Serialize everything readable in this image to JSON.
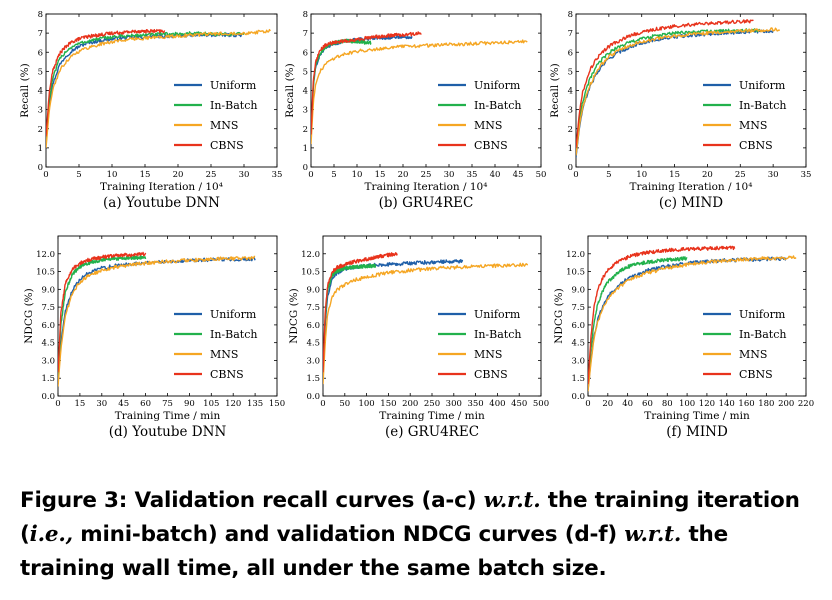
{
  "colors": {
    "Uniform": "#1f5fa8",
    "In-Batch": "#22b14c",
    "MNS": "#f5a623",
    "CBNS": "#e8331c"
  },
  "caption": {
    "label": "Figure 3:",
    "seg1": " Validation recall curves (a-c) ",
    "wrt1": "w.r.t.",
    "seg2": " the training iteration (",
    "ie": "i.e.,",
    "seg3": " mini-batch) and validation NDCG curves (d-f) ",
    "wrt2": "w.r.t.",
    "seg4": " the training wall time, all under the same batch size."
  },
  "chart_data": [
    {
      "id": "a",
      "type": "line",
      "subcaption": "(a) Youtube DNN",
      "xlabel": "Training Iteration / 10⁴",
      "ylabel": "Recall (%)",
      "xlim": [
        0,
        35
      ],
      "ylim": [
        0,
        8
      ],
      "xticks": [
        0,
        5,
        10,
        15,
        20,
        25,
        30,
        35
      ],
      "yticks": [
        0,
        1,
        2,
        3,
        4,
        5,
        6,
        7,
        8
      ],
      "legend": [
        "Uniform",
        "In-Batch",
        "MNS",
        "CBNS"
      ],
      "legend_position": "bottom-right",
      "series": [
        {
          "name": "Uniform",
          "x": [
            0,
            0.5,
            1,
            2,
            3,
            4,
            5,
            6,
            8,
            10,
            12,
            15,
            18,
            20,
            22,
            25,
            28,
            30
          ],
          "y": [
            1.2,
            3.2,
            4.3,
            5.3,
            5.8,
            6.1,
            6.3,
            6.45,
            6.6,
            6.7,
            6.75,
            6.8,
            6.85,
            6.85,
            6.9,
            6.9,
            6.9,
            6.9
          ]
        },
        {
          "name": "In-Batch",
          "x": [
            0,
            0.5,
            1,
            2,
            3,
            4,
            5,
            6,
            8,
            10,
            12,
            15,
            18,
            20,
            22,
            25,
            28,
            30
          ],
          "y": [
            1.4,
            3.5,
            4.6,
            5.6,
            6.05,
            6.3,
            6.45,
            6.55,
            6.7,
            6.8,
            6.85,
            6.9,
            6.95,
            6.95,
            7.0,
            6.95,
            6.95,
            6.95
          ]
        },
        {
          "name": "MNS",
          "x": [
            0,
            0.5,
            1,
            2,
            3,
            4,
            5,
            6,
            8,
            10,
            12,
            15,
            18,
            20,
            22,
            25,
            28,
            30,
            32,
            34
          ],
          "y": [
            1.0,
            3.0,
            4.0,
            5.0,
            5.5,
            5.85,
            6.05,
            6.2,
            6.4,
            6.55,
            6.65,
            6.75,
            6.8,
            6.85,
            6.9,
            6.95,
            7.0,
            7.0,
            7.05,
            7.1
          ]
        },
        {
          "name": "CBNS",
          "x": [
            0,
            0.5,
            1,
            2,
            3,
            4,
            5,
            6,
            8,
            10,
            12,
            14,
            16,
            18
          ],
          "y": [
            1.6,
            3.9,
            5.0,
            5.9,
            6.3,
            6.55,
            6.7,
            6.8,
            6.9,
            7.0,
            7.05,
            7.1,
            7.1,
            7.1
          ]
        }
      ]
    },
    {
      "id": "b",
      "type": "line",
      "subcaption": "(b) GRU4REC",
      "xlabel": "Training Iteration / 10⁴",
      "ylabel": "Recall (%)",
      "xlim": [
        0,
        50
      ],
      "ylim": [
        0,
        8
      ],
      "xticks": [
        0,
        5,
        10,
        15,
        20,
        25,
        30,
        35,
        40,
        45,
        50
      ],
      "yticks": [
        0,
        1,
        2,
        3,
        4,
        5,
        6,
        7,
        8
      ],
      "legend": [
        "Uniform",
        "In-Batch",
        "MNS",
        "CBNS"
      ],
      "legend_position": "bottom-right",
      "series": [
        {
          "name": "Uniform",
          "x": [
            0,
            0.5,
            1,
            2,
            3,
            4,
            5,
            6,
            8,
            10,
            12,
            14,
            16,
            18,
            20,
            22
          ],
          "y": [
            1.5,
            4.2,
            5.2,
            5.9,
            6.2,
            6.35,
            6.45,
            6.5,
            6.6,
            6.65,
            6.7,
            6.75,
            6.75,
            6.8,
            6.8,
            6.8
          ]
        },
        {
          "name": "In-Batch",
          "x": [
            0,
            0.5,
            1,
            2,
            3,
            4,
            5,
            6,
            8,
            10,
            12,
            13
          ],
          "y": [
            1.6,
            4.3,
            5.3,
            5.95,
            6.25,
            6.4,
            6.5,
            6.55,
            6.6,
            6.55,
            6.5,
            6.5
          ]
        },
        {
          "name": "MNS",
          "x": [
            0,
            0.5,
            1,
            2,
            3,
            4,
            5,
            6,
            8,
            10,
            15,
            20,
            25,
            30,
            35,
            40,
            45,
            47
          ],
          "y": [
            1.2,
            3.4,
            4.3,
            5.0,
            5.35,
            5.55,
            5.7,
            5.8,
            5.95,
            6.05,
            6.2,
            6.3,
            6.35,
            6.4,
            6.45,
            6.5,
            6.55,
            6.55
          ]
        },
        {
          "name": "CBNS",
          "x": [
            0,
            0.5,
            1,
            2,
            3,
            4,
            5,
            6,
            8,
            10,
            12,
            14,
            16,
            18,
            20,
            22,
            24
          ],
          "y": [
            1.7,
            4.5,
            5.5,
            6.1,
            6.35,
            6.45,
            6.5,
            6.55,
            6.6,
            6.65,
            6.75,
            6.8,
            6.85,
            6.9,
            6.9,
            6.95,
            7.0
          ]
        }
      ]
    },
    {
      "id": "c",
      "type": "line",
      "subcaption": "(c) MIND",
      "xlabel": "Training Iteration / 10⁴",
      "ylabel": "Recall (%)",
      "xlim": [
        0,
        35
      ],
      "ylim": [
        0,
        8
      ],
      "xticks": [
        0,
        5,
        10,
        15,
        20,
        25,
        30,
        35
      ],
      "yticks": [
        0,
        1,
        2,
        3,
        4,
        5,
        6,
        7,
        8
      ],
      "legend": [
        "Uniform",
        "In-Batch",
        "MNS",
        "CBNS"
      ],
      "legend_position": "bottom-right",
      "series": [
        {
          "name": "Uniform",
          "x": [
            0,
            0.5,
            1,
            2,
            3,
            4,
            5,
            6,
            8,
            10,
            12,
            15,
            18,
            20,
            22,
            25,
            28,
            30
          ],
          "y": [
            0.5,
            2.0,
            3.0,
            4.1,
            4.8,
            5.3,
            5.65,
            5.9,
            6.25,
            6.5,
            6.65,
            6.8,
            6.9,
            6.95,
            7.0,
            7.05,
            7.1,
            7.1
          ]
        },
        {
          "name": "In-Batch",
          "x": [
            0,
            0.5,
            1,
            2,
            3,
            4,
            5,
            6,
            8,
            10,
            12,
            15,
            18,
            20,
            22,
            25,
            28
          ],
          "y": [
            0.8,
            2.4,
            3.4,
            4.5,
            5.2,
            5.65,
            5.95,
            6.2,
            6.5,
            6.7,
            6.85,
            7.0,
            7.05,
            7.1,
            7.1,
            7.15,
            7.15
          ]
        },
        {
          "name": "MNS",
          "x": [
            0,
            0.5,
            1,
            2,
            3,
            4,
            5,
            6,
            8,
            10,
            12,
            15,
            18,
            20,
            22,
            25,
            28,
            30,
            31
          ],
          "y": [
            0.6,
            2.1,
            3.1,
            4.2,
            4.9,
            5.4,
            5.75,
            6.0,
            6.35,
            6.55,
            6.7,
            6.85,
            6.95,
            7.0,
            7.05,
            7.1,
            7.15,
            7.2,
            7.2
          ]
        },
        {
          "name": "CBNS",
          "x": [
            0,
            0.5,
            1,
            2,
            3,
            4,
            5,
            6,
            8,
            10,
            12,
            15,
            18,
            20,
            22,
            25,
            27
          ],
          "y": [
            1.0,
            2.8,
            3.9,
            5.0,
            5.6,
            6.0,
            6.3,
            6.5,
            6.85,
            7.05,
            7.2,
            7.35,
            7.45,
            7.5,
            7.55,
            7.6,
            7.6
          ]
        }
      ]
    },
    {
      "id": "d",
      "type": "line",
      "subcaption": "(d) Youtube DNN",
      "xlabel": "Training Time / min",
      "ylabel": "NDCG (%)",
      "xlim": [
        0,
        150
      ],
      "ylim": [
        0,
        13.5
      ],
      "xticks": [
        0,
        15,
        30,
        45,
        60,
        75,
        90,
        105,
        120,
        135,
        150
      ],
      "yticks": [
        0.0,
        1.5,
        3.0,
        4.5,
        6.0,
        7.5,
        9.0,
        10.5,
        12.0
      ],
      "legend": [
        "Uniform",
        "In-Batch",
        "MNS",
        "CBNS"
      ],
      "legend_position": "bottom-right",
      "series": [
        {
          "name": "Uniform",
          "x": [
            0,
            2,
            5,
            10,
            15,
            20,
            30,
            40,
            50,
            60,
            75,
            90,
            105,
            120,
            135
          ],
          "y": [
            1.0,
            4.5,
            7.2,
            9.0,
            9.8,
            10.3,
            10.8,
            11.0,
            11.15,
            11.25,
            11.35,
            11.45,
            11.5,
            11.55,
            11.55
          ]
        },
        {
          "name": "In-Batch",
          "x": [
            0,
            2,
            5,
            10,
            15,
            20,
            30,
            40,
            50,
            60
          ],
          "y": [
            1.5,
            6.0,
            8.8,
            10.3,
            10.9,
            11.2,
            11.5,
            11.6,
            11.65,
            11.7
          ]
        },
        {
          "name": "MNS",
          "x": [
            0,
            2,
            5,
            10,
            15,
            20,
            30,
            40,
            50,
            60,
            75,
            90,
            105,
            120,
            135
          ],
          "y": [
            0.8,
            4.0,
            6.8,
            8.7,
            9.6,
            10.1,
            10.6,
            10.9,
            11.05,
            11.2,
            11.35,
            11.45,
            11.55,
            11.6,
            11.65
          ]
        },
        {
          "name": "CBNS",
          "x": [
            0,
            2,
            5,
            10,
            15,
            20,
            25,
            30,
            35,
            40,
            45,
            50,
            55,
            60
          ],
          "y": [
            2.0,
            7.0,
            9.5,
            10.7,
            11.2,
            11.45,
            11.6,
            11.7,
            11.8,
            11.85,
            11.9,
            11.9,
            11.95,
            12.0
          ]
        }
      ]
    },
    {
      "id": "e",
      "type": "line",
      "subcaption": "(e) GRU4REC",
      "xlabel": "Training Time / min",
      "ylabel": "NDCG (%)",
      "xlim": [
        0,
        500
      ],
      "ylim": [
        0,
        13.5
      ],
      "xticks": [
        0,
        50,
        100,
        150,
        200,
        250,
        300,
        350,
        400,
        450,
        500
      ],
      "yticks": [
        0.0,
        1.5,
        3.0,
        4.5,
        6.0,
        7.5,
        9.0,
        10.5,
        12.0
      ],
      "legend": [
        "Uniform",
        "In-Batch",
        "MNS",
        "CBNS"
      ],
      "legend_position": "bottom-right",
      "series": [
        {
          "name": "Uniform",
          "x": [
            0,
            5,
            10,
            20,
            30,
            50,
            75,
            100,
            150,
            200,
            250,
            300,
            320
          ],
          "y": [
            1.5,
            6.0,
            8.3,
            9.8,
            10.3,
            10.7,
            10.9,
            11.0,
            11.1,
            11.2,
            11.3,
            11.35,
            11.35
          ]
        },
        {
          "name": "In-Batch",
          "x": [
            0,
            5,
            10,
            20,
            30,
            50,
            75,
            100,
            120
          ],
          "y": [
            1.8,
            6.5,
            8.8,
            10.1,
            10.5,
            10.8,
            10.9,
            10.95,
            11.0
          ]
        },
        {
          "name": "MNS",
          "x": [
            0,
            5,
            10,
            20,
            30,
            50,
            75,
            100,
            150,
            200,
            250,
            300,
            350,
            400,
            450,
            470
          ],
          "y": [
            1.0,
            4.5,
            6.8,
            8.3,
            8.9,
            9.4,
            9.8,
            10.05,
            10.4,
            10.6,
            10.75,
            10.85,
            10.95,
            11.0,
            11.05,
            11.05
          ]
        },
        {
          "name": "CBNS",
          "x": [
            0,
            5,
            10,
            20,
            30,
            50,
            75,
            100,
            125,
            150,
            170
          ],
          "y": [
            2.0,
            7.0,
            9.2,
            10.4,
            10.8,
            11.1,
            11.35,
            11.55,
            11.75,
            11.9,
            12.0
          ]
        }
      ]
    },
    {
      "id": "f",
      "type": "line",
      "subcaption": "(f) MIND",
      "xlabel": "Training Time / min",
      "ylabel": "NDCG (%)",
      "xlim": [
        0,
        220
      ],
      "ylim": [
        0,
        13.5
      ],
      "xticks": [
        0,
        20,
        40,
        60,
        80,
        100,
        120,
        140,
        160,
        180,
        200,
        220
      ],
      "yticks": [
        0.0,
        1.5,
        3.0,
        4.5,
        6.0,
        7.5,
        9.0,
        10.5,
        12.0
      ],
      "legend": [
        "Uniform",
        "In-Batch",
        "MNS",
        "CBNS"
      ],
      "legend_position": "bottom-right",
      "series": [
        {
          "name": "Uniform",
          "x": [
            0,
            3,
            6,
            10,
            15,
            20,
            30,
            40,
            50,
            60,
            80,
            100,
            120,
            140,
            160,
            180,
            200
          ],
          "y": [
            0.5,
            3.0,
            5.0,
            6.5,
            7.6,
            8.4,
            9.3,
            9.9,
            10.3,
            10.6,
            10.95,
            11.2,
            11.35,
            11.45,
            11.5,
            11.55,
            11.6
          ]
        },
        {
          "name": "In-Batch",
          "x": [
            0,
            3,
            6,
            10,
            15,
            20,
            30,
            40,
            50,
            60,
            80,
            100
          ],
          "y": [
            0.8,
            4.0,
            6.2,
            7.8,
            8.9,
            9.6,
            10.4,
            10.9,
            11.15,
            11.3,
            11.5,
            11.6
          ]
        },
        {
          "name": "MNS",
          "x": [
            0,
            3,
            6,
            10,
            15,
            20,
            30,
            40,
            50,
            60,
            80,
            100,
            120,
            140,
            160,
            180,
            200,
            210
          ],
          "y": [
            0.4,
            2.8,
            4.8,
            6.3,
            7.4,
            8.2,
            9.1,
            9.7,
            10.1,
            10.4,
            10.8,
            11.1,
            11.3,
            11.45,
            11.55,
            11.6,
            11.65,
            11.7
          ]
        },
        {
          "name": "CBNS",
          "x": [
            0,
            3,
            6,
            10,
            15,
            20,
            30,
            40,
            50,
            60,
            70,
            80,
            100,
            120,
            140,
            148
          ],
          "y": [
            1.0,
            5.0,
            7.5,
            9.0,
            10.0,
            10.6,
            11.3,
            11.7,
            11.95,
            12.1,
            12.2,
            12.3,
            12.4,
            12.45,
            12.5,
            12.5
          ]
        }
      ]
    }
  ]
}
